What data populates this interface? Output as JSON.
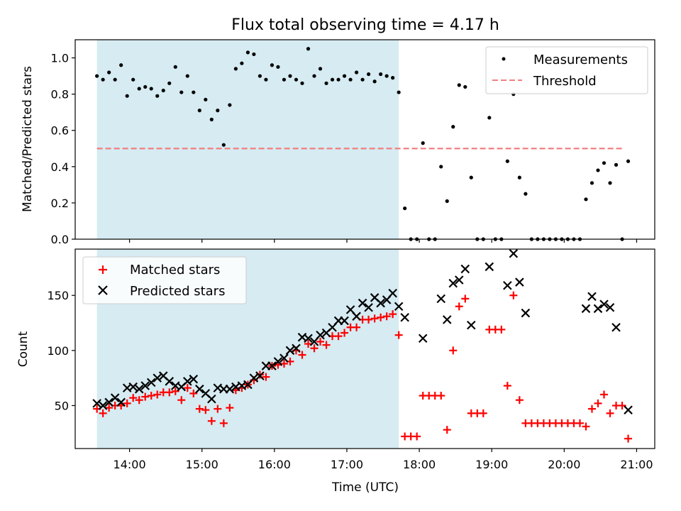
{
  "chart_data": [
    {
      "type": "scatter",
      "title": "Flux total observing time = 4.17 h",
      "xlabel": "",
      "ylabel": "Matched/Predicted stars",
      "xlim": [
        "13:15",
        "21:15"
      ],
      "ylim": [
        0.0,
        1.1
      ],
      "y_ticks": [
        "0.0",
        "0.2",
        "0.4",
        "0.6",
        "0.8",
        "1.0"
      ],
      "shaded_region": {
        "x_start": "13:33",
        "x_end": "17:43",
        "color": "#add8e6"
      },
      "threshold": {
        "name": "Threshold",
        "y": 0.5,
        "x_start": "13:33",
        "x_end": "20:48",
        "style": "dashed",
        "color": "#f08080"
      },
      "legend": {
        "placement": "top-right",
        "entries": [
          "Measurements",
          "Threshold"
        ]
      },
      "series": [
        {
          "name": "Measurements",
          "marker": "dot",
          "color": "#000000",
          "points": [
            [
              "13:33",
              0.9
            ],
            [
              "13:38",
              0.88
            ],
            [
              "13:43",
              0.92
            ],
            [
              "13:48",
              0.88
            ],
            [
              "13:53",
              0.96
            ],
            [
              "13:58",
              0.79
            ],
            [
              "14:03",
              0.88
            ],
            [
              "14:08",
              0.83
            ],
            [
              "14:13",
              0.84
            ],
            [
              "14:18",
              0.83
            ],
            [
              "14:23",
              0.79
            ],
            [
              "14:28",
              0.82
            ],
            [
              "14:33",
              0.86
            ],
            [
              "14:38",
              0.95
            ],
            [
              "14:43",
              0.81
            ],
            [
              "14:48",
              0.9
            ],
            [
              "14:53",
              0.81
            ],
            [
              "14:58",
              0.71
            ],
            [
              "15:03",
              0.77
            ],
            [
              "15:08",
              0.66
            ],
            [
              "15:13",
              0.71
            ],
            [
              "15:18",
              0.52
            ],
            [
              "15:23",
              0.74
            ],
            [
              "15:28",
              0.94
            ],
            [
              "15:33",
              0.97
            ],
            [
              "15:38",
              1.03
            ],
            [
              "15:43",
              1.02
            ],
            [
              "15:48",
              0.9
            ],
            [
              "15:53",
              0.88
            ],
            [
              "15:58",
              0.96
            ],
            [
              "16:03",
              0.95
            ],
            [
              "16:08",
              0.88
            ],
            [
              "16:13",
              0.9
            ],
            [
              "16:18",
              0.88
            ],
            [
              "16:23",
              0.86
            ],
            [
              "16:28",
              1.05
            ],
            [
              "16:33",
              0.9
            ],
            [
              "16:38",
              0.94
            ],
            [
              "16:43",
              0.86
            ],
            [
              "16:48",
              0.88
            ],
            [
              "16:53",
              0.88
            ],
            [
              "16:58",
              0.9
            ],
            [
              "17:03",
              0.88
            ],
            [
              "17:08",
              0.92
            ],
            [
              "17:13",
              0.88
            ],
            [
              "17:18",
              0.91
            ],
            [
              "17:23",
              0.87
            ],
            [
              "17:28",
              0.91
            ],
            [
              "17:33",
              0.9
            ],
            [
              "17:38",
              0.89
            ],
            [
              "17:43",
              0.81
            ],
            [
              "17:48",
              0.17
            ],
            [
              "17:53",
              0.0
            ],
            [
              "17:58",
              0.0
            ],
            [
              "18:03",
              0.53
            ],
            [
              "18:08",
              0.0
            ],
            [
              "18:13",
              0.0
            ],
            [
              "18:18",
              0.4
            ],
            [
              "18:23",
              0.21
            ],
            [
              "18:28",
              0.62
            ],
            [
              "18:33",
              0.85
            ],
            [
              "18:38",
              0.84
            ],
            [
              "18:43",
              0.34
            ],
            [
              "18:48",
              0.0
            ],
            [
              "18:53",
              0.0
            ],
            [
              "18:58",
              0.67
            ],
            [
              "19:03",
              0.0
            ],
            [
              "19:08",
              0.0
            ],
            [
              "19:13",
              0.43
            ],
            [
              "19:18",
              0.8
            ],
            [
              "19:23",
              0.34
            ],
            [
              "19:28",
              0.25
            ],
            [
              "19:33",
              0.0
            ],
            [
              "19:38",
              0.0
            ],
            [
              "19:43",
              0.0
            ],
            [
              "19:48",
              0.0
            ],
            [
              "19:53",
              0.0
            ],
            [
              "19:58",
              0.0
            ],
            [
              "20:03",
              0.0
            ],
            [
              "20:08",
              0.0
            ],
            [
              "20:13",
              0.0
            ],
            [
              "20:18",
              0.22
            ],
            [
              "20:23",
              0.31
            ],
            [
              "20:28",
              0.38
            ],
            [
              "20:33",
              0.42
            ],
            [
              "20:38",
              0.31
            ],
            [
              "20:43",
              0.41
            ],
            [
              "20:48",
              0.0
            ],
            [
              "20:53",
              0.43
            ]
          ]
        }
      ]
    },
    {
      "type": "scatter",
      "title": "",
      "xlabel": "Time (UTC)",
      "ylabel": "Count",
      "xlim": [
        "13:15",
        "21:15"
      ],
      "ylim": [
        11,
        192
      ],
      "x_ticks": [
        "14:00",
        "15:00",
        "16:00",
        "17:00",
        "18:00",
        "19:00",
        "20:00",
        "21:00"
      ],
      "y_ticks": [
        "50",
        "100",
        "150"
      ],
      "shaded_region": {
        "x_start": "13:33",
        "x_end": "17:43",
        "color": "#add8e6"
      },
      "legend": {
        "placement": "top-left",
        "entries": [
          "Matched stars",
          "Predicted stars"
        ]
      },
      "series": [
        {
          "name": "Matched stars",
          "marker": "plus",
          "color": "#ff0000",
          "points": [
            [
              "13:33",
              47
            ],
            [
              "13:38",
              43
            ],
            [
              "13:43",
              48
            ],
            [
              "13:48",
              50
            ],
            [
              "13:53",
              50
            ],
            [
              "13:58",
              52
            ],
            [
              "14:03",
              57
            ],
            [
              "14:08",
              55
            ],
            [
              "14:13",
              58
            ],
            [
              "14:18",
              59
            ],
            [
              "14:23",
              60
            ],
            [
              "14:28",
              62
            ],
            [
              "14:33",
              62
            ],
            [
              "14:38",
              63
            ],
            [
              "14:43",
              55
            ],
            [
              "14:48",
              66
            ],
            [
              "14:53",
              61
            ],
            [
              "14:58",
              47
            ],
            [
              "15:03",
              46
            ],
            [
              "15:08",
              36
            ],
            [
              "15:13",
              47
            ],
            [
              "15:18",
              34
            ],
            [
              "15:23",
              48
            ],
            [
              "15:28",
              64
            ],
            [
              "15:33",
              66
            ],
            [
              "15:38",
              69
            ],
            [
              "15:43",
              73
            ],
            [
              "15:48",
              78
            ],
            [
              "15:53",
              76
            ],
            [
              "15:58",
              86
            ],
            [
              "16:03",
              87
            ],
            [
              "16:08",
              88
            ],
            [
              "16:13",
              90
            ],
            [
              "16:18",
              100
            ],
            [
              "16:23",
              96
            ],
            [
              "16:28",
              106
            ],
            [
              "16:33",
              102
            ],
            [
              "16:38",
              108
            ],
            [
              "16:43",
              105
            ],
            [
              "16:48",
              113
            ],
            [
              "16:53",
              113
            ],
            [
              "16:58",
              116
            ],
            [
              "17:03",
              121
            ],
            [
              "17:08",
              121
            ],
            [
              "17:13",
              128
            ],
            [
              "17:18",
              128
            ],
            [
              "17:23",
              129
            ],
            [
              "17:28",
              130
            ],
            [
              "17:33",
              131
            ],
            [
              "17:38",
              133
            ],
            [
              "17:43",
              114
            ],
            [
              "17:48",
              22
            ],
            [
              "17:53",
              22
            ],
            [
              "17:58",
              22
            ],
            [
              "18:03",
              59
            ],
            [
              "18:08",
              59
            ],
            [
              "18:13",
              59
            ],
            [
              "18:18",
              59
            ],
            [
              "18:23",
              28
            ],
            [
              "18:28",
              100
            ],
            [
              "18:33",
              140
            ],
            [
              "18:38",
              147
            ],
            [
              "18:43",
              43
            ],
            [
              "18:48",
              43
            ],
            [
              "18:53",
              43
            ],
            [
              "18:58",
              119
            ],
            [
              "19:03",
              119
            ],
            [
              "19:08",
              119
            ],
            [
              "19:13",
              68
            ],
            [
              "19:18",
              150
            ],
            [
              "19:23",
              55
            ],
            [
              "19:28",
              34
            ],
            [
              "19:33",
              34
            ],
            [
              "19:38",
              34
            ],
            [
              "19:43",
              34
            ],
            [
              "19:48",
              34
            ],
            [
              "19:53",
              34
            ],
            [
              "19:58",
              34
            ],
            [
              "20:03",
              34
            ],
            [
              "20:08",
              34
            ],
            [
              "20:13",
              34
            ],
            [
              "20:18",
              31
            ],
            [
              "20:23",
              47
            ],
            [
              "20:28",
              52
            ],
            [
              "20:33",
              60
            ],
            [
              "20:38",
              43
            ],
            [
              "20:43",
              50
            ],
            [
              "20:48",
              50
            ],
            [
              "20:53",
              20
            ]
          ]
        },
        {
          "name": "Predicted stars",
          "marker": "x",
          "color": "#000000",
          "points": [
            [
              "13:33",
              52
            ],
            [
              "13:38",
              50
            ],
            [
              "13:43",
              53
            ],
            [
              "13:48",
              57
            ],
            [
              "13:53",
              53
            ],
            [
              "13:58",
              66
            ],
            [
              "14:03",
              67
            ],
            [
              "14:08",
              65
            ],
            [
              "14:13",
              68
            ],
            [
              "14:18",
              71
            ],
            [
              "14:23",
              75
            ],
            [
              "14:28",
              77
            ],
            [
              "14:33",
              72
            ],
            [
              "14:38",
              68
            ],
            [
              "14:43",
              67
            ],
            [
              "14:48",
              72
            ],
            [
              "14:53",
              74
            ],
            [
              "14:58",
              65
            ],
            [
              "15:03",
              61
            ],
            [
              "15:08",
              56
            ],
            [
              "15:13",
              66
            ],
            [
              "15:18",
              65
            ],
            [
              "15:23",
              65
            ],
            [
              "15:28",
              67
            ],
            [
              "15:33",
              68
            ],
            [
              "15:38",
              69
            ],
            [
              "15:43",
              75
            ],
            [
              "15:48",
              77
            ],
            [
              "15:53",
              86
            ],
            [
              "15:58",
              86
            ],
            [
              "16:03",
              90
            ],
            [
              "16:08",
              93
            ],
            [
              "16:13",
              100
            ],
            [
              "16:18",
              102
            ],
            [
              "16:23",
              112
            ],
            [
              "16:28",
              111
            ],
            [
              "16:33",
              108
            ],
            [
              "16:38",
              114
            ],
            [
              "16:43",
              116
            ],
            [
              "16:48",
              121
            ],
            [
              "16:53",
              127
            ],
            [
              "16:58",
              127
            ],
            [
              "17:03",
              137
            ],
            [
              "17:08",
              131
            ],
            [
              "17:13",
              143
            ],
            [
              "17:18",
              139
            ],
            [
              "17:23",
              148
            ],
            [
              "17:28",
              143
            ],
            [
              "17:33",
              146
            ],
            [
              "17:38",
              152
            ],
            [
              "17:43",
              140
            ],
            [
              "17:48",
              130
            ],
            [
              "18:03",
              111
            ],
            [
              "18:18",
              147
            ],
            [
              "18:23",
              128
            ],
            [
              "18:28",
              161
            ],
            [
              "18:33",
              164
            ],
            [
              "18:38",
              174
            ],
            [
              "18:43",
              123
            ],
            [
              "18:58",
              176
            ],
            [
              "19:13",
              159
            ],
            [
              "19:18",
              188
            ],
            [
              "19:23",
              162
            ],
            [
              "19:28",
              134
            ],
            [
              "20:18",
              138
            ],
            [
              "20:23",
              149
            ],
            [
              "20:28",
              138
            ],
            [
              "20:33",
              142
            ],
            [
              "20:38",
              139
            ],
            [
              "20:43",
              121
            ],
            [
              "20:53",
              46
            ]
          ]
        }
      ]
    }
  ]
}
